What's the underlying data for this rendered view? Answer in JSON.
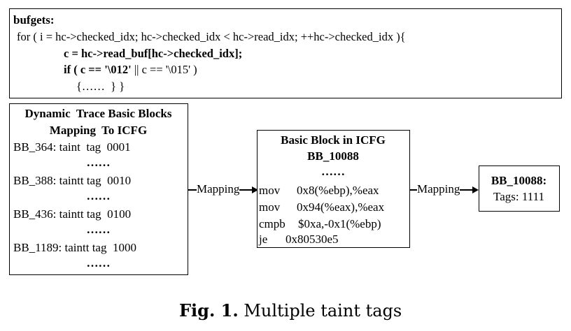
{
  "code_box": {
    "title": "bufgets:",
    "line1": "for ( i = hc->checked_idx; hc->checked_idx < hc->read_idx; ++hc->checked_idx ){",
    "line2": "c = hc->read_buf[hc->checked_idx];",
    "line3_kw": "if ( c == '\\012'",
    "line3_rest": " || c == '\\015' )",
    "line4": "{……  } }"
  },
  "trace_box": {
    "title_line1": "Dynamic  Trace Basic Blocks",
    "title_line2": "Mapping  To ICFG",
    "entries": [
      {
        "text": "BB_364: taint  tag  0001",
        "dots": "……"
      },
      {
        "text": "BB_388: taintt tag  0010",
        "dots": "……"
      },
      {
        "text": "BB_436: taintt tag  0100",
        "dots": "……"
      },
      {
        "text": "BB_1189: taintt tag  1000",
        "dots": "……"
      }
    ]
  },
  "icfg_box": {
    "title_line1": "Basic Block in ICFG",
    "title_line2": "BB_10088",
    "dots": "……",
    "instructions": [
      {
        "op": "mov",
        "args": "0x8(%ebp),%eax"
      },
      {
        "op": "mov",
        "args": "0x94(%eax),%eax"
      },
      {
        "op": "cmpb",
        "args": "$0xa,-0x1(%ebp)"
      },
      {
        "op": "je",
        "args": "0x80530e5"
      }
    ]
  },
  "result_box": {
    "title": "BB_10088:",
    "tags": "Tags: 1111"
  },
  "arrows": {
    "label1": "Mapping",
    "label2": "Mapping"
  },
  "caption": {
    "label": "Fig. 1.",
    "text": " Multiple taint tags"
  }
}
